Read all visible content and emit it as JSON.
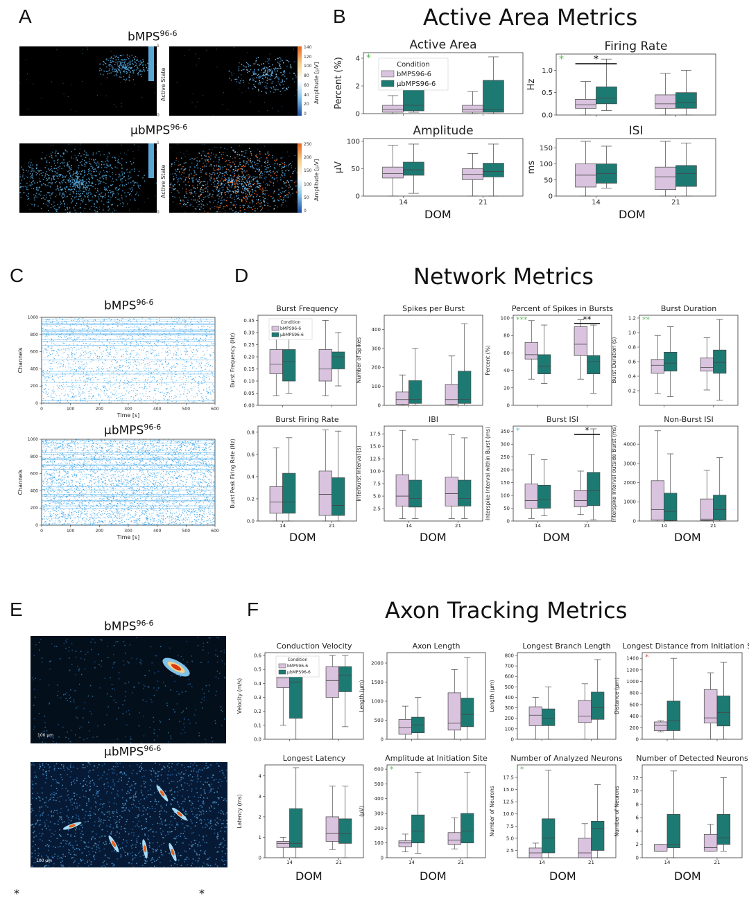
{
  "labels": {
    "a": "A",
    "b": "B",
    "c": "C",
    "d": "D",
    "e": "E",
    "f": "F",
    "section_b": "Active Area Metrics",
    "section_d": "Network Metrics",
    "section_f": "Axon Tracking Metrics",
    "dom": "DOM",
    "foot_left": "*",
    "foot_right": "*"
  },
  "panel_a": {
    "top_title": "bMPS",
    "top_sup": "96-6",
    "bottom_title": "μbMPS",
    "bottom_sup": "96-6",
    "active_state_label": "Active State",
    "amplitude_label": "Amplitude [μV]",
    "state_ticks": [
      "1",
      "0"
    ],
    "top_amp_ticks": [
      "140",
      "120",
      "100",
      "80",
      "60",
      "40",
      "20",
      "0"
    ],
    "bottom_amp_ticks": [
      "250",
      "200",
      "150",
      "100",
      "50",
      "0"
    ]
  },
  "panel_c": {
    "top_title": "bMPS",
    "top_sup": "96-6",
    "bottom_title": "μbMPS",
    "bottom_sup": "96-6",
    "ylabel": "Channels",
    "xlabel": "Time [s]",
    "yticks": [
      "1000",
      "800",
      "600",
      "400",
      "200",
      "0"
    ],
    "xticks": [
      "0",
      "100",
      "200",
      "300",
      "400",
      "500",
      "600"
    ]
  },
  "panel_e": {
    "top_title": "bMPS",
    "top_sup": "96-6",
    "bottom_title": "μbMPS",
    "bottom_sup": "96-6",
    "scale_label": "100 μm"
  },
  "colors": {
    "bmps": "#d9c3de",
    "ubmps": "#1d7a73",
    "star_green": "#5cb85c",
    "star_blue": "#5bc0de",
    "star_red": "#d9534f",
    "raster": "#2e9ee8"
  },
  "chart_data": [
    {
      "id": "active_area",
      "type": "box",
      "title": "Active Area",
      "ylabel": "Percent (%)",
      "ylim": [
        0,
        4.2
      ],
      "yticks": [
        "0",
        "2",
        "4"
      ],
      "xticks": [
        "",
        ""
      ],
      "legend": {
        "title": "Condition",
        "items": [
          "bMPS96-6",
          "μbMPS96-6"
        ]
      },
      "corner_star": "*",
      "corner_star_color": "green",
      "sig": [],
      "boxes": [
        [
          0,
          0.1,
          0.3,
          0.6,
          1.3
        ],
        [
          0.1,
          0.2,
          0.6,
          1.7,
          3.6
        ],
        [
          0,
          0.1,
          0.3,
          0.6,
          1.6
        ],
        [
          0,
          0.1,
          0.3,
          2.4,
          4.1
        ]
      ]
    },
    {
      "id": "firing_rate",
      "type": "box",
      "title": "Firing Rate",
      "ylabel": "Hz",
      "ylim": [
        0,
        1.3
      ],
      "yticks": [
        "0.0",
        "0.5",
        "1.0"
      ],
      "xticks": [
        "",
        ""
      ],
      "corner_star": "*",
      "corner_star_color": "green",
      "sig": [
        {
          "group": 0,
          "text": "*"
        }
      ],
      "boxes": [
        [
          0,
          0.15,
          0.23,
          0.35,
          0.75
        ],
        [
          0.1,
          0.25,
          0.38,
          0.63,
          1.25
        ],
        [
          0,
          0.15,
          0.25,
          0.45,
          0.93
        ],
        [
          0,
          0.15,
          0.27,
          0.5,
          1.0
        ]
      ]
    },
    {
      "id": "amplitude",
      "type": "box",
      "title": "Amplitude",
      "ylabel": "μV",
      "ylim": [
        0,
        100
      ],
      "yticks": [
        "0",
        "50",
        "100"
      ],
      "xticks": [
        "14",
        "21"
      ],
      "sig": [],
      "boxes": [
        [
          0,
          33,
          41,
          53,
          93
        ],
        [
          5,
          38,
          48,
          62,
          95
        ],
        [
          0,
          30,
          40,
          50,
          78
        ],
        [
          0,
          35,
          45,
          60,
          95
        ]
      ]
    },
    {
      "id": "isi",
      "type": "box",
      "title": "ISI",
      "ylabel": "ms",
      "ylim": [
        0,
        170
      ],
      "yticks": [
        "0",
        "50",
        "100",
        "150"
      ],
      "xticks": [
        "14",
        "21"
      ],
      "sig": [],
      "boxes": [
        [
          0,
          28,
          65,
          100,
          170
        ],
        [
          25,
          40,
          70,
          100,
          155
        ],
        [
          0,
          20,
          60,
          90,
          170
        ],
        [
          0,
          30,
          70,
          95,
          165
        ]
      ]
    },
    {
      "id": "burst_frequency",
      "type": "box",
      "title": "Burst Frequency",
      "ylabel": "Burst Frequency (Hz)",
      "ylim": [
        0,
        0.36
      ],
      "yticks": [
        "0.00",
        "0.05",
        "0.10",
        "0.15",
        "0.20",
        "0.25",
        "0.30",
        "0.35"
      ],
      "xticks": [
        "",
        ""
      ],
      "legend": {
        "title": "Condition",
        "items": [
          "bMPS96-6",
          "μbMPS96-6"
        ]
      },
      "sig": [],
      "boxes": [
        [
          0.04,
          0.13,
          0.17,
          0.23,
          0.32
        ],
        [
          0.05,
          0.1,
          0.18,
          0.23,
          0.31
        ],
        [
          0.04,
          0.1,
          0.15,
          0.23,
          0.35
        ],
        [
          0.08,
          0.15,
          0.2,
          0.22,
          0.3
        ]
      ]
    },
    {
      "id": "spikes_per_burst",
      "type": "box",
      "title": "Spikes per Burst",
      "ylabel": "Number of Spikes",
      "ylim": [
        0,
        460
      ],
      "yticks": [
        "0",
        "100",
        "200",
        "300",
        "400"
      ],
      "xticks": [
        "",
        ""
      ],
      "sig": [],
      "boxes": [
        [
          0,
          5,
          30,
          70,
          160
        ],
        [
          0,
          10,
          30,
          130,
          300
        ],
        [
          0,
          5,
          30,
          110,
          260
        ],
        [
          0,
          10,
          30,
          180,
          430
        ]
      ]
    },
    {
      "id": "percent_spikes_in_bursts",
      "type": "box",
      "title": "Percent of Spikes in Bursts",
      "ylabel": "Percent (%)",
      "ylim": [
        0,
        100
      ],
      "yticks": [
        "0",
        "20",
        "40",
        "60",
        "80",
        "100"
      ],
      "xticks": [
        "",
        ""
      ],
      "corner_star": "***",
      "corner_star_color": "green",
      "sig": [
        {
          "group": 1,
          "text": "**"
        }
      ],
      "boxes": [
        [
          30,
          53,
          58,
          72,
          97
        ],
        [
          25,
          36,
          45,
          58,
          92
        ],
        [
          30,
          57,
          70,
          90,
          98
        ],
        [
          14,
          36,
          50,
          57,
          92
        ]
      ]
    },
    {
      "id": "burst_duration",
      "type": "box",
      "title": "Burst Duration",
      "ylabel": "Burst Duration (s)",
      "ylim": [
        0,
        1.2
      ],
      "yticks": [
        "0.2",
        "0.4",
        "0.6",
        "0.8",
        "1.0",
        "1.2"
      ],
      "xticks": [
        "",
        ""
      ],
      "corner_star": "**",
      "corner_star_color": "green",
      "sig": [],
      "boxes": [
        [
          0.16,
          0.44,
          0.55,
          0.63,
          0.96
        ],
        [
          0.12,
          0.47,
          0.58,
          0.73,
          1.08
        ],
        [
          0.21,
          0.47,
          0.52,
          0.65,
          0.93
        ],
        [
          0.07,
          0.44,
          0.59,
          0.76,
          1.18
        ]
      ]
    },
    {
      "id": "burst_firing_rate",
      "type": "box",
      "title": "Burst Firing Rate",
      "ylabel": "Burst Peak Firing Rate (Hz)",
      "ylim": [
        0,
        0.83
      ],
      "yticks": [
        "0.0",
        "0.2",
        "0.4",
        "0.6",
        "0.8"
      ],
      "xticks": [
        "14",
        "21"
      ],
      "sig": [],
      "boxes": [
        [
          0,
          0.07,
          0.17,
          0.31,
          0.66
        ],
        [
          0,
          0.07,
          0.17,
          0.43,
          0.75
        ],
        [
          0,
          0.05,
          0.24,
          0.45,
          0.82
        ],
        [
          0,
          0.05,
          0.14,
          0.39,
          0.81
        ]
      ]
    },
    {
      "id": "ibi",
      "type": "box",
      "title": "IBI",
      "ylabel": "Interburst Interval (s)",
      "ylim": [
        0,
        18.5
      ],
      "yticks": [
        "2.5",
        "5.0",
        "7.5",
        "10.0",
        "12.5",
        "15.0",
        "17.5"
      ],
      "xticks": [
        "14",
        "21"
      ],
      "sig": [],
      "boxes": [
        [
          0.5,
          3,
          5,
          9.3,
          18.2
        ],
        [
          0.5,
          2.8,
          4.5,
          8.2,
          16.3
        ],
        [
          0.5,
          3,
          5.5,
          8.8,
          17.3
        ],
        [
          0.5,
          3,
          4.5,
          8.2,
          16.7
        ]
      ]
    },
    {
      "id": "burst_isi",
      "type": "box",
      "title": "Burst ISI",
      "ylabel": "Interspike Interval within Burst (ms)",
      "ylim": [
        0,
        360
      ],
      "yticks": [
        "0",
        "50",
        "100",
        "150",
        "200",
        "250",
        "300",
        "350"
      ],
      "xticks": [
        "14",
        "21"
      ],
      "corner_star": "*",
      "corner_star_color": "blue",
      "sig": [
        {
          "group": 1,
          "text": "*"
        }
      ],
      "boxes": [
        [
          10,
          50,
          80,
          145,
          260
        ],
        [
          20,
          50,
          85,
          140,
          240
        ],
        [
          25,
          55,
          80,
          120,
          195
        ],
        [
          5,
          60,
          120,
          190,
          360
        ]
      ]
    },
    {
      "id": "non_burst_isi",
      "type": "box",
      "title": "Non-Burst ISI",
      "ylabel": "Interspike Interval outside Burst (ms)",
      "ylim": [
        0,
        4800
      ],
      "yticks": [
        "0",
        "1000",
        "2000",
        "3000",
        "4000"
      ],
      "xticks": [
        "14",
        "21"
      ],
      "sig": [],
      "boxes": [
        [
          0,
          50,
          600,
          2100,
          4700
        ],
        [
          0,
          30,
          500,
          1450,
          3500
        ],
        [
          0,
          30,
          100,
          1150,
          2650
        ],
        [
          0,
          50,
          600,
          1350,
          3300
        ]
      ]
    },
    {
      "id": "conduction_velocity",
      "type": "box",
      "title": "Conduction Velocity",
      "ylabel": "Velocity (m/s)",
      "ylim": [
        0,
        0.6
      ],
      "yticks": [
        "0.0",
        "0.1",
        "0.2",
        "0.3",
        "0.4",
        "0.5",
        "0.6"
      ],
      "xticks": [
        "",
        ""
      ],
      "legend": {
        "title": "Condition",
        "items": [
          "bMPS96-6",
          "μbMPS96-6"
        ]
      },
      "sig": [],
      "boxes": [
        [
          0.1,
          0.37,
          0.44,
          0.5,
          0.58
        ],
        [
          0,
          0.15,
          0.41,
          0.48,
          0.58
        ],
        [
          0,
          0.3,
          0.42,
          0.52,
          0.6
        ],
        [
          0.09,
          0.34,
          0.46,
          0.52,
          0.6
        ]
      ]
    },
    {
      "id": "axon_length",
      "type": "box",
      "title": "Axon Length",
      "ylabel": "Length (μm)",
      "ylim": [
        0,
        2200
      ],
      "yticks": [
        "0",
        "500",
        "1000",
        "1500",
        "2000"
      ],
      "xticks": [
        "",
        ""
      ],
      "sig": [],
      "boxes": [
        [
          0,
          130,
          300,
          520,
          870
        ],
        [
          0,
          170,
          380,
          580,
          1100
        ],
        [
          0,
          240,
          420,
          1220,
          1830
        ],
        [
          0,
          330,
          650,
          1080,
          2150
        ]
      ]
    },
    {
      "id": "longest_branch_length",
      "type": "box",
      "title": "Longest Branch Length",
      "ylabel": "Length (μm)",
      "ylim": [
        0,
        800
      ],
      "yticks": [
        "0",
        "100",
        "200",
        "300",
        "400",
        "500",
        "600",
        "700",
        "800"
      ],
      "xticks": [
        "",
        ""
      ],
      "sig": [],
      "boxes": [
        [
          0,
          130,
          230,
          310,
          400
        ],
        [
          0,
          130,
          200,
          290,
          500
        ],
        [
          0,
          160,
          220,
          370,
          530
        ],
        [
          0,
          190,
          300,
          450,
          760
        ]
      ]
    },
    {
      "id": "longest_distance",
      "type": "box",
      "title": "Longest Distance from Initiation Site",
      "ylabel": "Distance (μm)",
      "ylim": [
        0,
        1450
      ],
      "yticks": [
        "0",
        "200",
        "400",
        "600",
        "800",
        "1000",
        "1200",
        "1400"
      ],
      "xticks": [
        "",
        ""
      ],
      "corner_star": "*",
      "corner_star_color": "red",
      "sig": [],
      "boxes": [
        [
          130,
          150,
          240,
          300,
          320
        ],
        [
          0,
          150,
          320,
          660,
          1400
        ],
        [
          0,
          280,
          370,
          860,
          1150
        ],
        [
          0,
          230,
          460,
          750,
          1330
        ]
      ]
    },
    {
      "id": "longest_latency",
      "type": "box",
      "title": "Longest Latency",
      "ylabel": "Latency (ms)",
      "ylim": [
        0,
        4.4
      ],
      "yticks": [
        "0",
        "1",
        "2",
        "3",
        "4"
      ],
      "xticks": [
        "14",
        "21"
      ],
      "sig": [],
      "boxes": [
        [
          0,
          0.5,
          0.7,
          0.8,
          1.0
        ],
        [
          0,
          0.5,
          0.7,
          2.4,
          4.4
        ],
        [
          0.4,
          0.8,
          1.2,
          2.0,
          3.5
        ],
        [
          0,
          0.7,
          1.2,
          1.9,
          3.5
        ]
      ]
    },
    {
      "id": "amplitude_initiation_site",
      "type": "box",
      "title": "Amplitude at Initiation Site",
      "ylabel": "(μV)",
      "ylim": [
        0,
        610
      ],
      "yticks": [
        "0",
        "100",
        "200",
        "300",
        "400",
        "500",
        "600"
      ],
      "xticks": [
        "14",
        "21"
      ],
      "corner_star": "*",
      "corner_star_color": "green",
      "sig": [],
      "boxes": [
        [
          40,
          75,
          100,
          115,
          160
        ],
        [
          30,
          100,
          180,
          290,
          580
        ],
        [
          60,
          90,
          120,
          170,
          270
        ],
        [
          0,
          100,
          180,
          300,
          580
        ]
      ]
    },
    {
      "id": "analyzed_neurons",
      "type": "box",
      "title": "Number of Analyzed Neurons",
      "ylabel": "Number of Neurons",
      "ylim": [
        1,
        19.5
      ],
      "yticks": [
        "2.5",
        "5.0",
        "7.5",
        "10.0",
        "12.5",
        "15.0",
        "17.5"
      ],
      "xticks": [
        "14",
        "21"
      ],
      "corner_star": "*",
      "corner_star_color": "green",
      "sig": [],
      "boxes": [
        [
          1,
          1,
          2,
          3,
          4
        ],
        [
          1,
          2,
          5,
          9,
          19
        ],
        [
          1,
          1,
          2,
          5,
          8
        ],
        [
          1,
          2.5,
          7,
          8.5,
          16
        ]
      ]
    },
    {
      "id": "detected_neurons",
      "type": "box",
      "title": "Number of Detected Neurons",
      "ylabel": "Number of Neurons",
      "ylim": [
        0,
        13.5
      ],
      "yticks": [
        "0",
        "2",
        "4",
        "6",
        "8",
        "10",
        "12"
      ],
      "xticks": [
        "14",
        "21"
      ],
      "sig": [],
      "boxes": [
        [
          1,
          1,
          1,
          2,
          2
        ],
        [
          0,
          1.5,
          2,
          6.5,
          13
        ],
        [
          1,
          1,
          1.5,
          3.5,
          5
        ],
        [
          1,
          2,
          3,
          6.5,
          12
        ]
      ]
    }
  ]
}
